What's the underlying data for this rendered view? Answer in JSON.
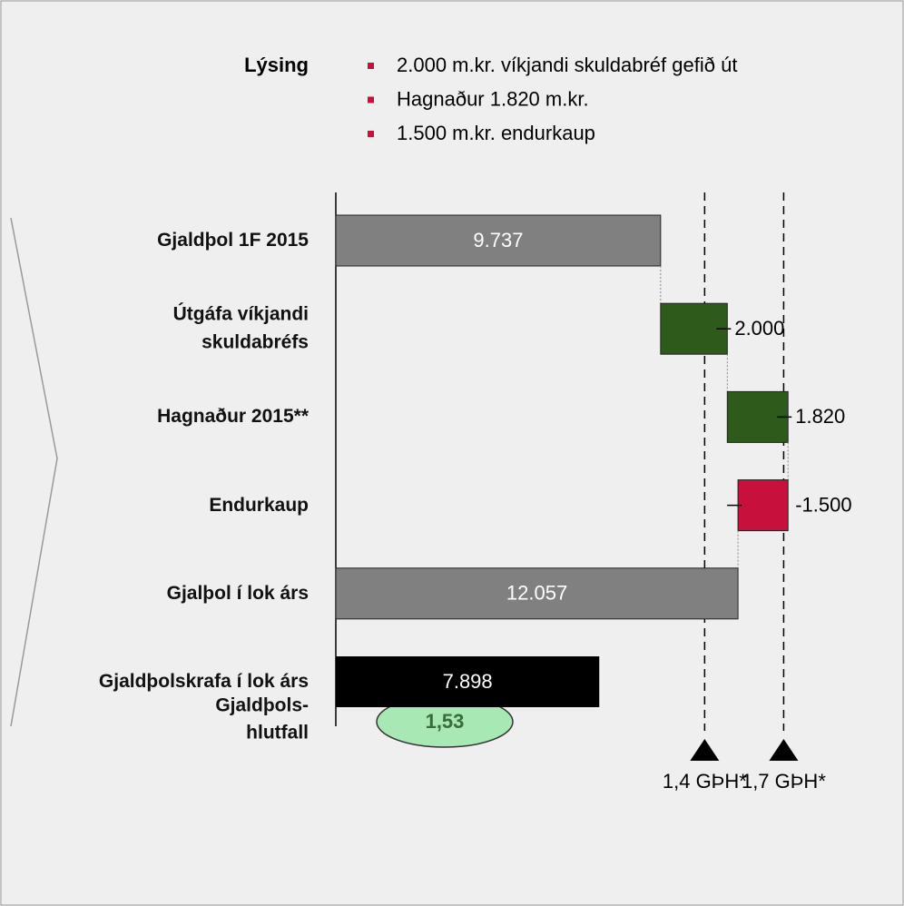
{
  "chart_data": {
    "type": "waterfall",
    "description_label": "Lýsing",
    "description_items": [
      "2.000 m.kr. víkjandi skuldabréf gefið út",
      "Hagnaður 1.820 m.kr.",
      "1.500 m.kr. endurkaup"
    ],
    "categories": [
      "Gjaldþol 1F 2015",
      "Útgáfa víkjandi\nskuldabréfs",
      "Hagnaður 2015**",
      "Endurkaup",
      "Gjalþol í lok árs",
      "Gjaldþolskrafa í lok árs"
    ],
    "values": [
      9737,
      2000,
      1820,
      -1500,
      12057,
      7898
    ],
    "value_labels": [
      "9.737",
      "2.000",
      "1.820",
      "-1.500",
      "12.057",
      "7.898"
    ],
    "measure": [
      "absolute",
      "relative",
      "relative",
      "relative",
      "total",
      "absolute"
    ],
    "bar_colors": [
      "#808080",
      "#2e5a1c",
      "#2e5a1c",
      "#c8103c",
      "#808080",
      "#000000"
    ],
    "xlim": [
      0,
      16000
    ],
    "reference_lines": [
      {
        "value": 11057.2,
        "label": "1,4 GÞH*"
      },
      {
        "value": 13426.6,
        "label": "1,7 GÞH*"
      }
    ],
    "ratio_label": "Gjaldþols-\nhlutfall",
    "ratio_value": "1,53"
  }
}
